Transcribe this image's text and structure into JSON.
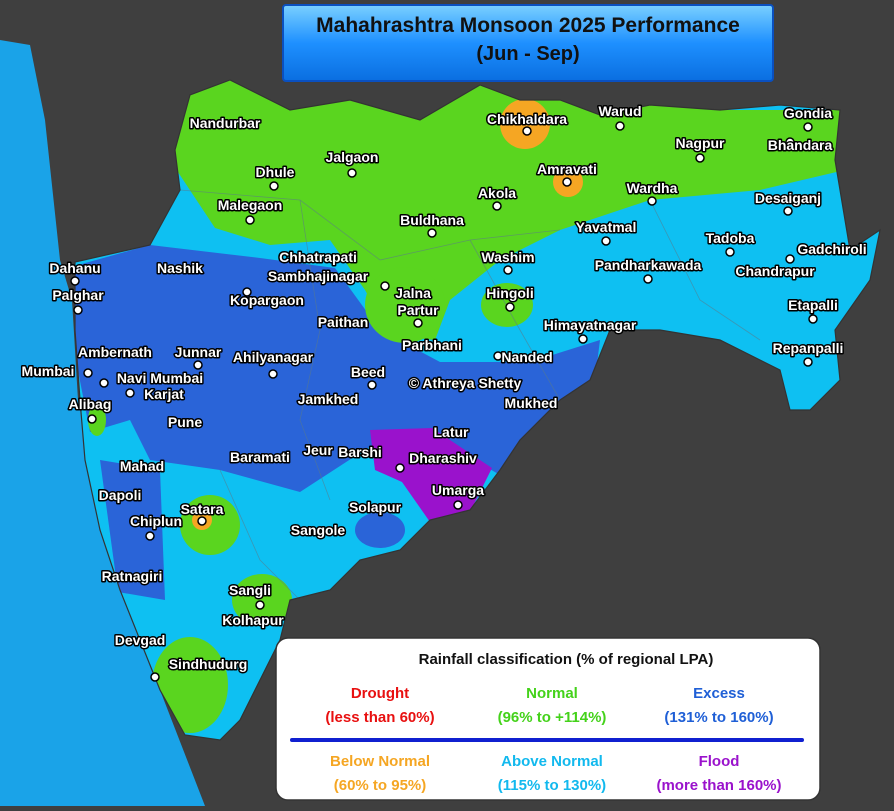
{
  "title": "Mahahrashtra Monsoon 2025 Performance",
  "subtitle": "(Jun - Sep)",
  "watermark": "© Athreya Shetty",
  "cities": [
    {
      "label": "Nandurbar"
    },
    {
      "label": "Dhule"
    },
    {
      "label": "Jalgaon"
    },
    {
      "label": "Malegaon"
    },
    {
      "label": "Chikhaldara"
    },
    {
      "label": "Warud"
    },
    {
      "label": "Gondia"
    },
    {
      "label": "Nagpur"
    },
    {
      "label": "Bhandara"
    },
    {
      "label": "Amravati"
    },
    {
      "label": "Akola"
    },
    {
      "label": "Wardha"
    },
    {
      "label": "Buldhana"
    },
    {
      "label": "Desaiganj"
    },
    {
      "label": "Yavatmal"
    },
    {
      "label": "Tadoba"
    },
    {
      "label": "Gadchiroli"
    },
    {
      "label": "Chhatrapati"
    },
    {
      "label": "Sambhajinagar"
    },
    {
      "label": "Washim"
    },
    {
      "label": "Pandharkawada"
    },
    {
      "label": "Chandrapur"
    },
    {
      "label": "Dahanu"
    },
    {
      "label": "Nashik"
    },
    {
      "label": "Palghar"
    },
    {
      "label": "Jalna"
    },
    {
      "label": "Hingoli"
    },
    {
      "label": "Partur"
    },
    {
      "label": "Kopargaon"
    },
    {
      "label": "Etapalli"
    },
    {
      "label": "Paithan"
    },
    {
      "label": "Himayatnagar"
    },
    {
      "label": "Ambernath"
    },
    {
      "label": "Junnar"
    },
    {
      "label": "Ahilyanagar"
    },
    {
      "label": "Parbhani"
    },
    {
      "label": "Nanded"
    },
    {
      "label": "Repanpalli"
    },
    {
      "label": "Mumbai"
    },
    {
      "label": "Navi Mumbai"
    },
    {
      "label": "Beed"
    },
    {
      "label": "Karjat"
    },
    {
      "label": "Alibag"
    },
    {
      "label": "Jamkhed"
    },
    {
      "label": "Mukhed"
    },
    {
      "label": "Pune"
    },
    {
      "label": "Latur"
    },
    {
      "label": "Baramati"
    },
    {
      "label": "Jeur"
    },
    {
      "label": "Barshi"
    },
    {
      "label": "Dharashiv"
    },
    {
      "label": "Mahad"
    },
    {
      "label": "Umarga"
    },
    {
      "label": "Dapoli"
    },
    {
      "label": "Satara"
    },
    {
      "label": "Chiplun"
    },
    {
      "label": "Solapur"
    },
    {
      "label": "Sangole"
    },
    {
      "label": "Ratnagiri"
    },
    {
      "label": "Sangli"
    },
    {
      "label": "Kolhapur"
    },
    {
      "label": "Devgad"
    },
    {
      "label": "Sindhudurg"
    }
  ],
  "legend": {
    "title": "Rainfall classification (% of regional LPA)",
    "items": [
      {
        "name": "Drought",
        "range": "(less than 60%)",
        "color": "#e81010"
      },
      {
        "name": "Normal",
        "range": "(96% to +114%)",
        "color": "#44d21a"
      },
      {
        "name": "Excess",
        "range": "(131% to 160%)",
        "color": "#1f5fd6"
      },
      {
        "name": "Below Normal",
        "range": "(60% to 95%)",
        "color": "#f5a623"
      },
      {
        "name": "Above Normal",
        "range": "(115% to 130%)",
        "color": "#12b9ee"
      },
      {
        "name": "Flood",
        "range": "(more than 160%)",
        "color": "#9a12cc"
      }
    ]
  }
}
